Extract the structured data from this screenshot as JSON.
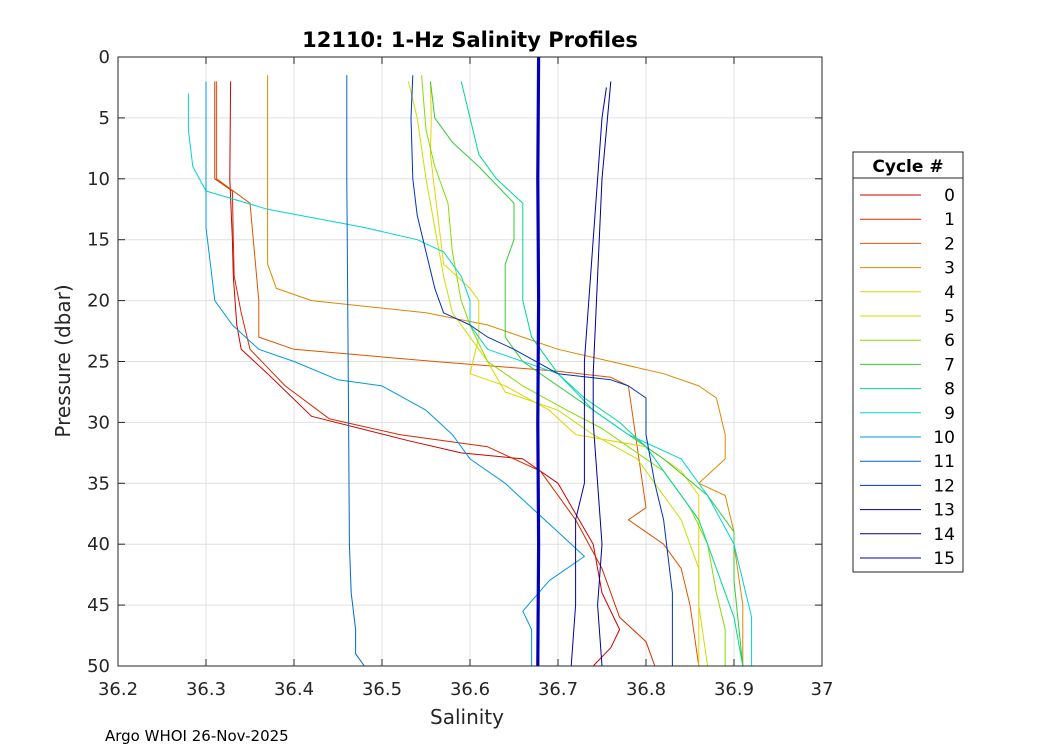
{
  "chart_data": {
    "type": "line",
    "title": "12110: 1-Hz Salinity Profiles",
    "xlabel": "Salinity",
    "ylabel": "Pressure (dbar)",
    "xlim": [
      36.2,
      37
    ],
    "ylim": [
      0,
      50
    ],
    "y_reversed": true,
    "grid": true,
    "xticks": [
      "36.2",
      "36.3",
      "36.4",
      "36.5",
      "36.6",
      "36.7",
      "36.8",
      "36.9",
      "37"
    ],
    "yticks": [
      "0",
      "5",
      "10",
      "15",
      "20",
      "25",
      "30",
      "35",
      "40",
      "45",
      "50"
    ],
    "legend_title": "Cycle #",
    "legend_position": "right",
    "series": [
      {
        "name": "0",
        "color": "#cc0000",
        "points": [
          [
            36.328,
            2
          ],
          [
            36.327,
            10
          ],
          [
            36.33,
            15
          ],
          [
            36.331,
            18
          ],
          [
            36.335,
            22
          ],
          [
            36.34,
            24
          ],
          [
            36.37,
            26
          ],
          [
            36.42,
            29.5
          ],
          [
            36.53,
            31.5
          ],
          [
            36.59,
            32.5
          ],
          [
            36.66,
            33
          ],
          [
            36.7,
            35
          ],
          [
            36.74,
            40
          ],
          [
            36.75,
            44
          ],
          [
            36.77,
            47
          ],
          [
            36.76,
            48.5
          ],
          [
            36.74,
            50
          ]
        ]
      },
      {
        "name": "1",
        "color": "#d42a00",
        "points": [
          [
            36.31,
            2
          ],
          [
            36.31,
            10
          ],
          [
            36.33,
            11
          ],
          [
            36.331,
            15
          ],
          [
            36.332,
            18
          ],
          [
            36.34,
            21
          ],
          [
            36.35,
            24
          ],
          [
            36.39,
            27
          ],
          [
            36.44,
            29.7
          ],
          [
            36.52,
            31
          ],
          [
            36.62,
            32
          ],
          [
            36.68,
            34
          ],
          [
            36.72,
            38
          ],
          [
            36.75,
            42
          ],
          [
            36.77,
            46
          ],
          [
            36.8,
            48
          ],
          [
            36.81,
            50
          ]
        ]
      },
      {
        "name": "2",
        "color": "#dd5500",
        "points": [
          [
            36.312,
            2
          ],
          [
            36.312,
            10
          ],
          [
            36.35,
            12
          ],
          [
            36.355,
            16
          ],
          [
            36.36,
            20
          ],
          [
            36.36,
            23
          ],
          [
            36.4,
            24
          ],
          [
            36.56,
            25
          ],
          [
            36.7,
            25.8
          ],
          [
            36.76,
            26.3
          ],
          [
            36.78,
            27
          ],
          [
            36.79,
            32
          ],
          [
            36.8,
            37
          ],
          [
            36.78,
            38
          ],
          [
            36.82,
            40
          ],
          [
            36.84,
            42
          ],
          [
            36.85,
            45
          ],
          [
            36.86,
            50
          ]
        ]
      },
      {
        "name": "3",
        "color": "#dd8800",
        "points": [
          [
            36.37,
            1.5
          ],
          [
            36.37,
            10
          ],
          [
            36.37,
            16
          ],
          [
            36.37,
            17
          ],
          [
            36.38,
            19
          ],
          [
            36.42,
            20
          ],
          [
            36.55,
            21
          ],
          [
            36.62,
            22
          ],
          [
            36.7,
            24
          ],
          [
            36.82,
            26
          ],
          [
            36.86,
            27
          ],
          [
            36.88,
            28
          ],
          [
            36.89,
            31
          ],
          [
            36.89,
            33
          ],
          [
            36.86,
            35
          ],
          [
            36.89,
            36
          ],
          [
            36.9,
            39
          ],
          [
            36.9,
            40
          ],
          [
            36.91,
            45
          ],
          [
            36.91,
            50
          ]
        ]
      },
      {
        "name": "4",
        "color": "#e6d200",
        "points": [
          [
            36.555,
            2
          ],
          [
            36.556,
            5
          ],
          [
            36.555,
            8
          ],
          [
            36.56,
            11
          ],
          [
            36.565,
            14
          ],
          [
            36.57,
            17
          ],
          [
            36.6,
            19
          ],
          [
            36.61,
            20
          ],
          [
            36.61,
            23
          ],
          [
            36.6,
            26
          ],
          [
            36.64,
            27
          ],
          [
            36.69,
            29
          ],
          [
            36.72,
            31
          ],
          [
            36.8,
            32
          ],
          [
            36.84,
            34
          ],
          [
            36.86,
            36
          ],
          [
            36.86,
            40
          ],
          [
            36.86,
            45
          ],
          [
            36.86,
            50
          ]
        ]
      },
      {
        "name": "5",
        "color": "#c8e100",
        "points": [
          [
            36.53,
            2
          ],
          [
            36.54,
            5
          ],
          [
            36.55,
            10
          ],
          [
            36.56,
            14
          ],
          [
            36.57,
            18
          ],
          [
            36.58,
            21
          ],
          [
            36.61,
            24
          ],
          [
            36.62,
            25
          ],
          [
            36.64,
            27.5
          ],
          [
            36.7,
            29
          ],
          [
            36.74,
            31
          ],
          [
            36.79,
            33
          ],
          [
            36.82,
            36
          ],
          [
            36.84,
            38
          ],
          [
            36.86,
            42
          ],
          [
            36.86,
            45
          ],
          [
            36.87,
            50
          ]
        ]
      },
      {
        "name": "6",
        "color": "#88dd00",
        "points": [
          [
            36.545,
            1.5
          ],
          [
            36.55,
            6
          ],
          [
            36.56,
            9
          ],
          [
            36.575,
            12
          ],
          [
            36.58,
            16
          ],
          [
            36.59,
            20
          ],
          [
            36.6,
            22
          ],
          [
            36.62,
            25
          ],
          [
            36.66,
            27
          ],
          [
            36.71,
            29
          ],
          [
            36.75,
            30.5
          ],
          [
            36.78,
            32
          ],
          [
            36.82,
            34
          ],
          [
            36.85,
            37
          ],
          [
            36.87,
            40
          ],
          [
            36.88,
            44
          ],
          [
            36.89,
            47
          ],
          [
            36.89,
            50
          ]
        ]
      },
      {
        "name": "7",
        "color": "#33cc33",
        "points": [
          [
            36.555,
            2
          ],
          [
            36.56,
            5
          ],
          [
            36.58,
            7
          ],
          [
            36.61,
            9
          ],
          [
            36.65,
            12
          ],
          [
            36.65,
            15
          ],
          [
            36.64,
            17
          ],
          [
            36.64,
            20
          ],
          [
            36.64,
            23
          ],
          [
            36.66,
            25
          ],
          [
            36.7,
            27
          ],
          [
            36.74,
            29
          ],
          [
            36.78,
            31
          ],
          [
            36.82,
            33
          ],
          [
            36.87,
            36
          ],
          [
            36.9,
            39
          ],
          [
            36.9,
            43
          ],
          [
            36.91,
            50
          ]
        ]
      },
      {
        "name": "8",
        "color": "#00d890",
        "points": [
          [
            36.59,
            2
          ],
          [
            36.6,
            5
          ],
          [
            36.61,
            8
          ],
          [
            36.63,
            10
          ],
          [
            36.66,
            12
          ],
          [
            36.66,
            16
          ],
          [
            36.66,
            20
          ],
          [
            36.67,
            23
          ],
          [
            36.7,
            26
          ],
          [
            36.73,
            28
          ],
          [
            36.77,
            30
          ],
          [
            36.8,
            32
          ],
          [
            36.83,
            35
          ],
          [
            36.86,
            38
          ],
          [
            36.88,
            42
          ],
          [
            36.9,
            46
          ],
          [
            36.91,
            50
          ]
        ]
      },
      {
        "name": "9",
        "color": "#00d4d4",
        "points": [
          [
            36.28,
            3
          ],
          [
            36.28,
            6
          ],
          [
            36.285,
            9
          ],
          [
            36.3,
            11
          ],
          [
            36.37,
            12.5
          ],
          [
            36.48,
            14
          ],
          [
            36.54,
            15
          ],
          [
            36.57,
            16
          ],
          [
            36.59,
            18
          ],
          [
            36.6,
            20
          ],
          [
            36.6,
            22
          ],
          [
            36.62,
            24
          ],
          [
            36.7,
            26
          ],
          [
            36.74,
            29
          ],
          [
            36.78,
            31
          ],
          [
            36.84,
            33
          ],
          [
            36.87,
            36
          ],
          [
            36.9,
            40
          ],
          [
            36.92,
            46
          ],
          [
            36.92,
            50
          ]
        ]
      },
      {
        "name": "10",
        "color": "#0099dd",
        "points": [
          [
            36.3,
            2
          ],
          [
            36.3,
            10
          ],
          [
            36.3,
            14
          ],
          [
            36.305,
            17
          ],
          [
            36.31,
            20
          ],
          [
            36.33,
            22
          ],
          [
            36.36,
            24
          ],
          [
            36.4,
            25
          ],
          [
            36.45,
            26.5
          ],
          [
            36.5,
            27
          ],
          [
            36.55,
            29
          ],
          [
            36.58,
            31
          ],
          [
            36.6,
            33
          ],
          [
            36.64,
            35
          ],
          [
            36.67,
            37
          ],
          [
            36.7,
            39
          ],
          [
            36.73,
            41
          ],
          [
            36.69,
            43
          ],
          [
            36.66,
            45.5
          ],
          [
            36.67,
            47
          ],
          [
            36.67,
            50
          ]
        ]
      },
      {
        "name": "11",
        "color": "#0066cc",
        "points": [
          [
            36.46,
            1.5
          ],
          [
            36.46,
            10
          ],
          [
            36.461,
            20
          ],
          [
            36.462,
            30
          ],
          [
            36.463,
            40
          ],
          [
            36.465,
            44
          ],
          [
            36.47,
            47
          ],
          [
            36.47,
            49
          ],
          [
            36.48,
            50
          ]
        ]
      },
      {
        "name": "12",
        "color": "#0033bb",
        "points": [
          [
            36.535,
            1.5
          ],
          [
            36.533,
            5
          ],
          [
            36.535,
            10
          ],
          [
            36.54,
            13
          ],
          [
            36.55,
            16
          ],
          [
            36.56,
            19
          ],
          [
            36.57,
            21
          ],
          [
            36.6,
            22
          ],
          [
            36.62,
            23
          ],
          [
            36.65,
            24
          ],
          [
            36.7,
            26
          ],
          [
            36.76,
            26.5
          ],
          [
            36.78,
            27
          ],
          [
            36.8,
            28
          ],
          [
            36.8,
            31
          ],
          [
            36.81,
            35
          ],
          [
            36.82,
            38
          ],
          [
            36.83,
            44
          ],
          [
            36.83,
            50
          ]
        ]
      },
      {
        "name": "13",
        "color": "#0000aa",
        "points": [
          [
            36.755,
            2.5
          ],
          [
            36.75,
            5
          ],
          [
            36.745,
            10
          ],
          [
            36.74,
            15
          ],
          [
            36.735,
            20
          ],
          [
            36.73,
            25
          ],
          [
            36.73,
            30
          ],
          [
            36.73,
            35
          ],
          [
            36.72,
            38
          ],
          [
            36.72,
            40
          ],
          [
            36.72,
            45
          ],
          [
            36.715,
            50
          ]
        ]
      },
      {
        "name": "14",
        "color": "#000090",
        "points": [
          [
            36.76,
            2
          ],
          [
            36.755,
            6
          ],
          [
            36.75,
            10
          ],
          [
            36.745,
            18
          ],
          [
            36.74,
            26
          ],
          [
            36.74,
            30
          ],
          [
            36.745,
            35
          ],
          [
            36.75,
            40
          ],
          [
            36.745,
            45
          ],
          [
            36.75,
            50
          ]
        ]
      },
      {
        "name": "15",
        "color": "#0000b4",
        "width": 3.2,
        "points": [
          [
            36.678,
            0
          ],
          [
            36.677,
            10
          ],
          [
            36.678,
            20
          ],
          [
            36.677,
            30
          ],
          [
            36.678,
            40
          ],
          [
            36.677,
            50
          ]
        ]
      }
    ]
  },
  "footer": "Argo WHOI 26-Nov-2025"
}
